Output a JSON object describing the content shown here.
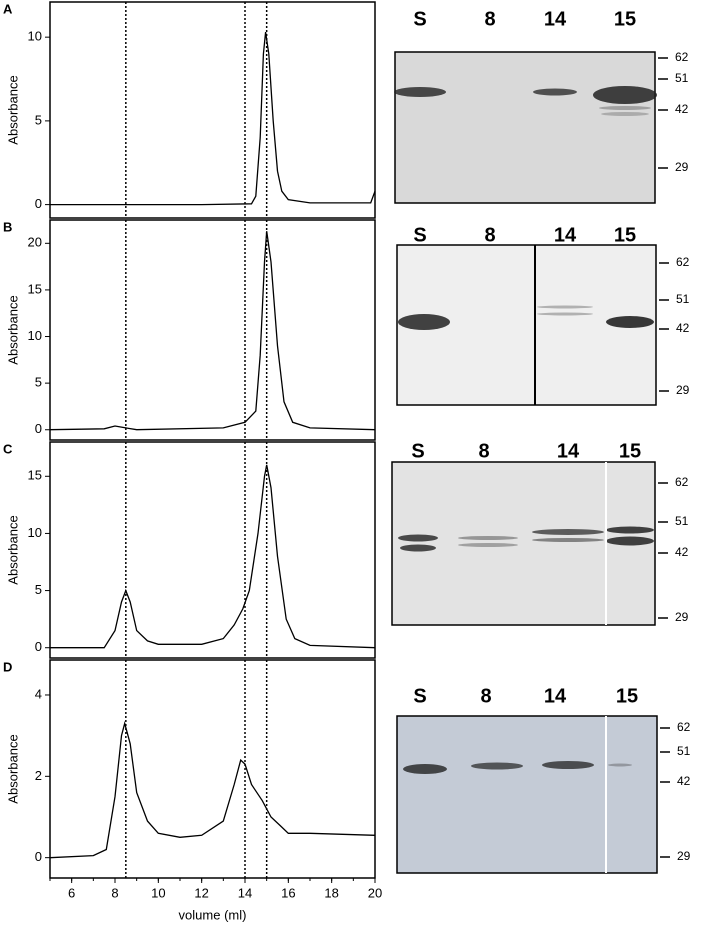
{
  "chart_data": [
    {
      "type": "line",
      "panel": "A",
      "ylabel": "Absorbance",
      "color": "#000000",
      "x": [
        5,
        8,
        12,
        14.3,
        14.5,
        14.7,
        14.85,
        14.95,
        15.1,
        15.3,
        15.5,
        15.7,
        16,
        17,
        19.8,
        20
      ],
      "values": [
        0,
        0,
        0,
        0.05,
        0.5,
        4,
        9,
        10.3,
        9,
        5,
        2,
        0.8,
        0.3,
        0.1,
        0.1,
        0.8
      ],
      "xlim": [
        5,
        20
      ],
      "ylim": [
        -0.8,
        12.1
      ],
      "yticks": [
        0,
        5,
        10
      ],
      "vlines": [
        8.5,
        14,
        15
      ]
    },
    {
      "type": "line",
      "panel": "B",
      "ylabel": "Absorbance",
      "color": "#000000",
      "x": [
        5,
        7.5,
        8,
        8.5,
        9,
        13,
        14,
        14.5,
        14.7,
        14.9,
        15,
        15.2,
        15.5,
        15.8,
        16.2,
        17,
        20
      ],
      "values": [
        0,
        0.1,
        0.4,
        0.2,
        0,
        0.2,
        0.8,
        2,
        8,
        18,
        21.3,
        18,
        9,
        3,
        0.8,
        0.2,
        0
      ],
      "xlim": [
        5,
        20
      ],
      "ylim": [
        -1.1,
        22.5
      ],
      "yticks": [
        0,
        5,
        10,
        15,
        20
      ],
      "vlines": [
        8.5,
        14,
        15
      ]
    },
    {
      "type": "line",
      "panel": "C",
      "ylabel": "Absorbance",
      "color": "#000000",
      "x": [
        5,
        7.5,
        8,
        8.3,
        8.5,
        8.7,
        9,
        9.5,
        10,
        12,
        13,
        13.5,
        13.9,
        14.2,
        14.6,
        14.9,
        15,
        15.2,
        15.5,
        15.9,
        16.3,
        17,
        20
      ],
      "values": [
        0,
        0,
        1.5,
        4,
        5,
        4,
        1.5,
        0.6,
        0.3,
        0.3,
        0.8,
        2,
        3.4,
        5,
        10,
        15,
        16,
        14,
        8,
        2.5,
        0.8,
        0.2,
        0
      ],
      "xlim": [
        5,
        20
      ],
      "ylim": [
        -0.9,
        18
      ],
      "yticks": [
        0,
        5,
        10,
        15
      ],
      "vlines": [
        8.5,
        14,
        15
      ]
    },
    {
      "type": "line",
      "panel": "D",
      "ylabel": "Absorbance",
      "xlabel": "volume (ml)",
      "color": "#000000",
      "x": [
        5,
        7,
        7.6,
        8,
        8.3,
        8.45,
        8.7,
        9,
        9.5,
        10,
        11,
        12,
        13,
        13.5,
        13.8,
        14,
        14.3,
        14.8,
        15.2,
        15.6,
        16,
        17,
        20
      ],
      "values": [
        0,
        0.05,
        0.2,
        1.5,
        3,
        3.3,
        2.8,
        1.6,
        0.9,
        0.6,
        0.5,
        0.55,
        0.9,
        1.8,
        2.4,
        2.3,
        1.8,
        1.4,
        1,
        0.8,
        0.6,
        0.6,
        0.55
      ],
      "xlim": [
        5,
        20
      ],
      "ylim": [
        -0.5,
        4.86
      ],
      "yticks": [
        0,
        2,
        4
      ],
      "xticks": [
        6,
        8,
        10,
        12,
        14,
        16,
        18,
        20
      ],
      "vlines": [
        8.5,
        14,
        15
      ]
    }
  ],
  "gels": [
    {
      "lanes": [
        "S",
        "8",
        "14",
        "15"
      ],
      "markers": [
        "62",
        "51",
        "42",
        "29"
      ]
    },
    {
      "lanes": [
        "S",
        "8",
        "14",
        "15"
      ],
      "markers": [
        "62",
        "51",
        "42",
        "29"
      ]
    },
    {
      "lanes": [
        "S",
        "8",
        "14",
        "15"
      ],
      "markers": [
        "62",
        "51",
        "42",
        "29"
      ]
    },
    {
      "lanes": [
        "S",
        "8",
        "14",
        "15"
      ],
      "markers": [
        "62",
        "51",
        "42",
        "29"
      ]
    }
  ]
}
